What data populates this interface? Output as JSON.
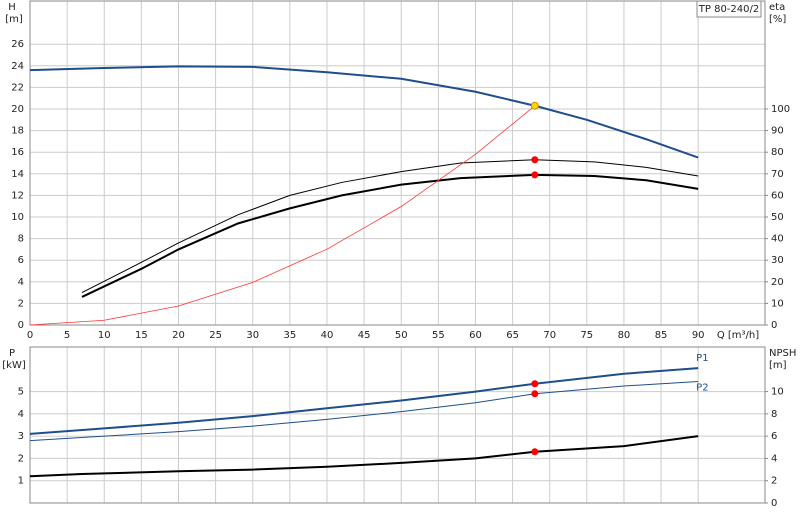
{
  "chart_data": [
    {
      "type": "line",
      "title": "TP 80-240/2",
      "ylabel": "H",
      "yunit": "[m]",
      "y2label": "eta",
      "y2unit": "[%]",
      "xlabel": "Q [m³/h]",
      "xlim": [
        0,
        99
      ],
      "xticks": [
        0,
        5,
        10,
        15,
        20,
        25,
        30,
        35,
        40,
        45,
        50,
        55,
        60,
        65,
        70,
        75,
        80,
        85,
        90
      ],
      "ylim": [
        0,
        30
      ],
      "yticks": [
        0,
        2,
        4,
        6,
        8,
        10,
        12,
        14,
        16,
        18,
        20,
        22,
        24,
        26
      ],
      "y2lim": [
        0,
        150
      ],
      "y2ticks": [
        0,
        10,
        20,
        30,
        40,
        50,
        60,
        70,
        80,
        90,
        100
      ],
      "grid": true,
      "series": [
        {
          "color": "#1f4e8c",
          "width": 2,
          "x": [
            0,
            10,
            20,
            30,
            40,
            50,
            60,
            68,
            75,
            83,
            90
          ],
          "values": [
            23.6,
            23.8,
            23.95,
            23.9,
            23.4,
            22.8,
            21.6,
            20.3,
            19,
            17.2,
            15.5
          ]
        },
        {
          "color": "#000000",
          "width": 1,
          "axis": "y2",
          "x": [
            7,
            15,
            20,
            28,
            35,
            42,
            50,
            58,
            68,
            76,
            83,
            90
          ],
          "values": [
            15,
            29,
            38,
            51,
            60,
            66,
            71,
            75,
            76.5,
            75.5,
            73,
            69
          ]
        },
        {
          "color": "#000000",
          "width": 2,
          "axis": "y2",
          "x": [
            7,
            15,
            20,
            28,
            35,
            42,
            50,
            58,
            68,
            76,
            83,
            90
          ],
          "values": [
            13,
            26,
            35,
            47,
            54,
            60,
            65,
            68,
            69.5,
            69,
            67,
            63
          ]
        },
        {
          "color": "#ff3333",
          "width": 0.8,
          "x": [
            0,
            10,
            20,
            30,
            40,
            50,
            60,
            68
          ],
          "values": [
            0,
            0.44,
            1.76,
            3.95,
            7.02,
            10.97,
            15.8,
            20.3
          ]
        }
      ],
      "markers": [
        {
          "x": 68,
          "y": 20.3,
          "color": "#ffd700"
        },
        {
          "x": 68,
          "y": 76.5,
          "axis": "y2",
          "color": "#ff0000"
        },
        {
          "x": 68,
          "y": 69.5,
          "axis": "y2",
          "color": "#ff0000"
        }
      ]
    },
    {
      "type": "line",
      "ylabel": "P",
      "yunit": "[kW]",
      "y2label": "NPSH",
      "y2unit": "[m]",
      "xlim": [
        0,
        99
      ],
      "ylim": [
        0,
        7
      ],
      "yticks": [
        1,
        2,
        3,
        4,
        5
      ],
      "y2lim": [
        0,
        14
      ],
      "y2ticks": [
        0,
        2,
        4,
        6,
        8,
        10
      ],
      "grid": true,
      "series": [
        {
          "name": "P1",
          "color": "#1f4e8c",
          "width": 2,
          "x": [
            0,
            10,
            20,
            30,
            40,
            50,
            60,
            68,
            80,
            90
          ],
          "values": [
            3.1,
            3.35,
            3.6,
            3.9,
            4.25,
            4.6,
            5.0,
            5.35,
            5.8,
            6.05
          ]
        },
        {
          "name": "P2",
          "color": "#1f4e8c",
          "width": 1,
          "x": [
            0,
            10,
            20,
            30,
            40,
            50,
            60,
            68,
            80,
            90
          ],
          "values": [
            2.8,
            3.0,
            3.2,
            3.45,
            3.75,
            4.1,
            4.5,
            4.9,
            5.25,
            5.45
          ]
        },
        {
          "color": "#000000",
          "width": 2,
          "axis": "y2",
          "x": [
            0,
            7,
            20,
            30,
            40,
            50,
            60,
            68,
            80,
            90
          ],
          "values": [
            2.4,
            2.6,
            2.85,
            3.0,
            3.25,
            3.6,
            4.0,
            4.6,
            5.1,
            6.0
          ]
        }
      ],
      "markers": [
        {
          "x": 68,
          "y": 5.35,
          "color": "#ff0000"
        },
        {
          "x": 68,
          "y": 4.9,
          "color": "#ff0000"
        },
        {
          "x": 68,
          "y": 4.6,
          "axis": "y2",
          "color": "#ff0000"
        }
      ]
    }
  ]
}
